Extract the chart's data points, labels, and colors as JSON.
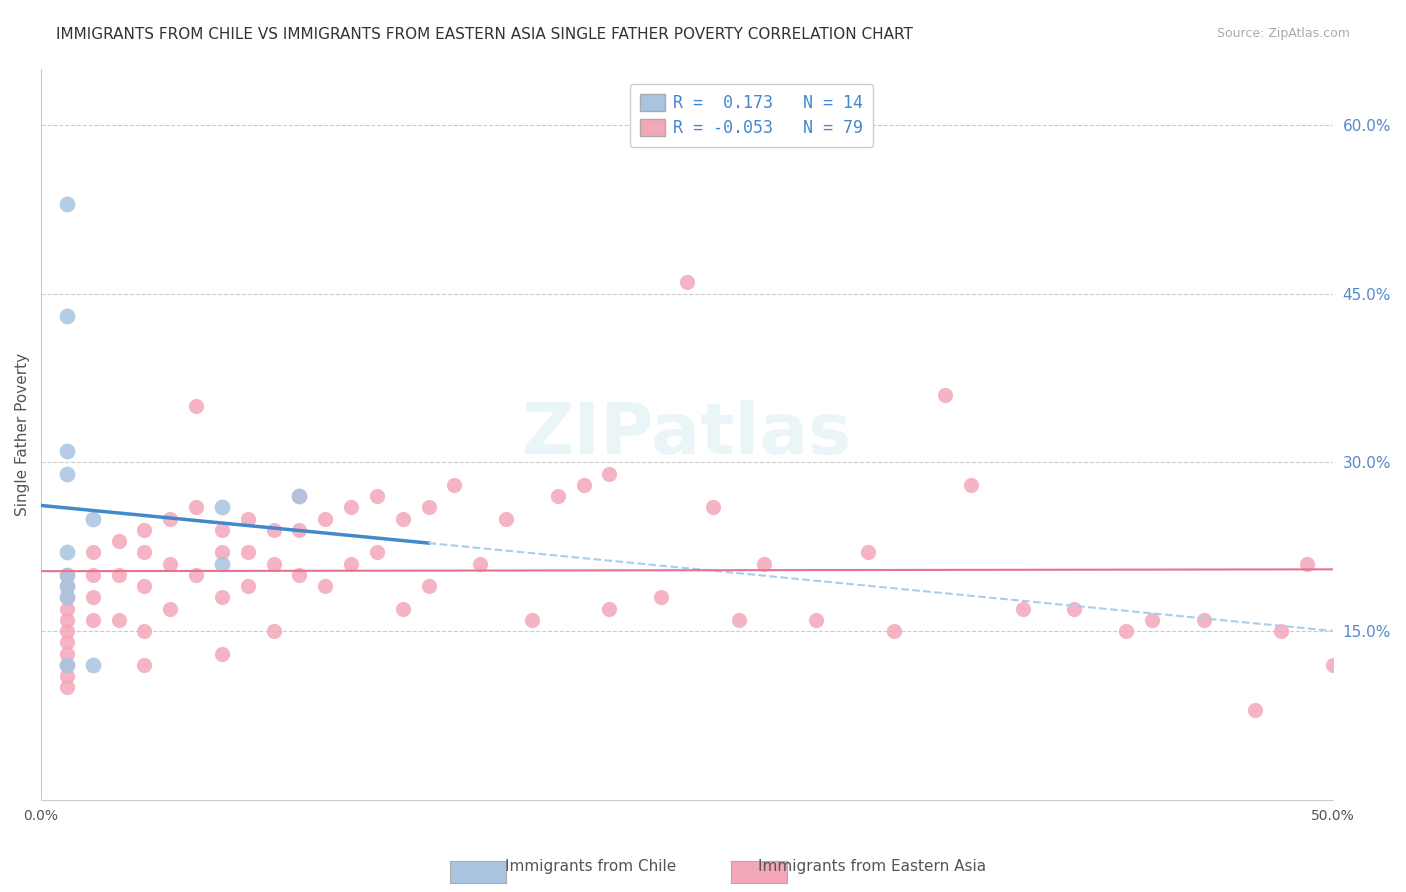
{
  "title": "IMMIGRANTS FROM CHILE VS IMMIGRANTS FROM EASTERN ASIA SINGLE FATHER POVERTY CORRELATION CHART",
  "source": "Source: ZipAtlas.com",
  "xlabel_bottom": "",
  "ylabel": "Single Father Poverty",
  "x_min": 0.0,
  "x_max": 0.5,
  "y_min": 0.0,
  "y_max": 0.65,
  "x_ticks": [
    0.0,
    0.1,
    0.2,
    0.3,
    0.4,
    0.5
  ],
  "x_tick_labels": [
    "0.0%",
    "",
    "",
    "",
    "",
    "50.0%"
  ],
  "y_ticks_right": [
    0.15,
    0.3,
    0.45,
    0.6
  ],
  "y_tick_labels_right": [
    "15.0%",
    "30.0%",
    "45.0%",
    "60.0%"
  ],
  "chile_color": "#a8c4e0",
  "eastern_asia_color": "#f4a7b9",
  "chile_R": 0.173,
  "chile_N": 14,
  "eastern_asia_R": -0.053,
  "eastern_asia_N": 79,
  "watermark": "ZIPatlas",
  "legend_label_chile": "Immigrants from Chile",
  "legend_label_eastern_asia": "Immigrants from Eastern Asia",
  "chile_points_x": [
    0.01,
    0.01,
    0.01,
    0.01,
    0.01,
    0.01,
    0.01,
    0.01,
    0.01,
    0.02,
    0.02,
    0.07,
    0.07,
    0.1
  ],
  "chile_points_y": [
    0.53,
    0.43,
    0.31,
    0.29,
    0.22,
    0.2,
    0.19,
    0.18,
    0.12,
    0.12,
    0.25,
    0.26,
    0.21,
    0.27
  ],
  "eastern_asia_points_x": [
    0.01,
    0.01,
    0.01,
    0.01,
    0.01,
    0.01,
    0.01,
    0.01,
    0.01,
    0.01,
    0.01,
    0.02,
    0.02,
    0.02,
    0.02,
    0.03,
    0.03,
    0.03,
    0.04,
    0.04,
    0.04,
    0.04,
    0.04,
    0.05,
    0.05,
    0.05,
    0.06,
    0.06,
    0.06,
    0.07,
    0.07,
    0.07,
    0.07,
    0.08,
    0.08,
    0.08,
    0.09,
    0.09,
    0.09,
    0.1,
    0.1,
    0.1,
    0.11,
    0.11,
    0.12,
    0.12,
    0.13,
    0.13,
    0.14,
    0.14,
    0.15,
    0.15,
    0.16,
    0.17,
    0.18,
    0.19,
    0.2,
    0.21,
    0.22,
    0.22,
    0.24,
    0.25,
    0.26,
    0.27,
    0.28,
    0.3,
    0.32,
    0.33,
    0.35,
    0.36,
    0.38,
    0.4,
    0.42,
    0.43,
    0.45,
    0.47,
    0.48,
    0.49,
    0.5
  ],
  "eastern_asia_points_y": [
    0.2,
    0.19,
    0.18,
    0.17,
    0.16,
    0.15,
    0.14,
    0.13,
    0.12,
    0.11,
    0.1,
    0.22,
    0.2,
    0.18,
    0.16,
    0.23,
    0.2,
    0.16,
    0.24,
    0.22,
    0.19,
    0.15,
    0.12,
    0.25,
    0.21,
    0.17,
    0.35,
    0.26,
    0.2,
    0.24,
    0.22,
    0.18,
    0.13,
    0.25,
    0.22,
    0.19,
    0.24,
    0.21,
    0.15,
    0.27,
    0.24,
    0.2,
    0.25,
    0.19,
    0.26,
    0.21,
    0.27,
    0.22,
    0.25,
    0.17,
    0.26,
    0.19,
    0.28,
    0.21,
    0.25,
    0.16,
    0.27,
    0.28,
    0.29,
    0.17,
    0.18,
    0.46,
    0.26,
    0.16,
    0.21,
    0.16,
    0.22,
    0.15,
    0.36,
    0.28,
    0.17,
    0.17,
    0.15,
    0.16,
    0.16,
    0.08,
    0.15,
    0.21,
    0.12
  ],
  "grid_color": "#cccccc",
  "background_color": "#ffffff",
  "title_fontsize": 11,
  "source_fontsize": 9
}
